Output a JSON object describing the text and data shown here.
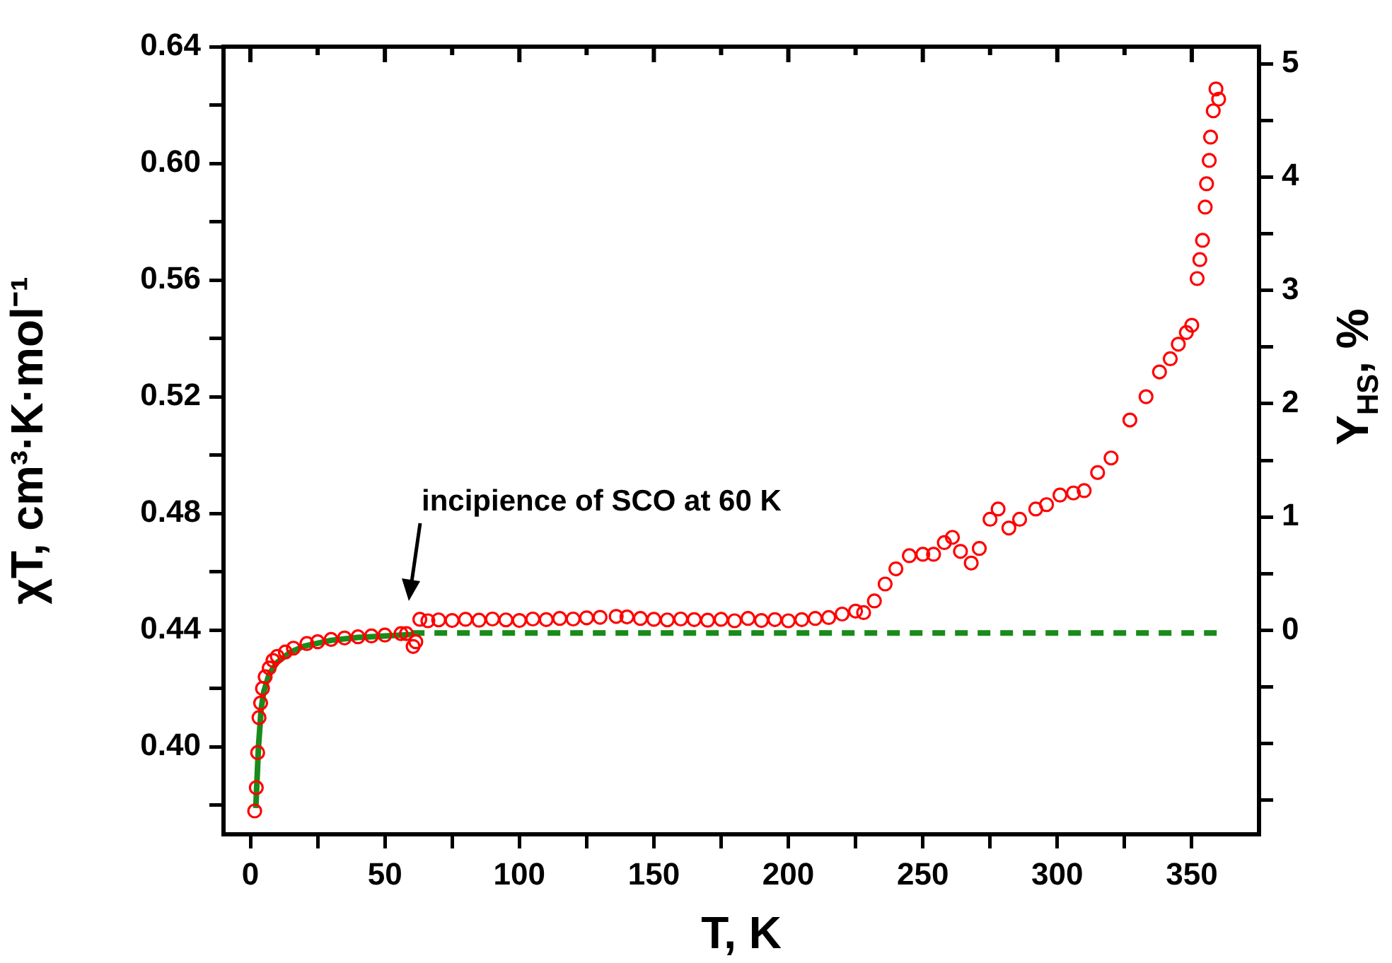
{
  "chart_data": {
    "type": "scatter",
    "xlabel": "T, K",
    "ylabel": "χT, cm³·K·mol⁻¹",
    "y2label": "Y$_{HS}$, %",
    "xlim": [
      -10,
      375
    ],
    "xticks": [
      0,
      {
        "value": 25,
        "label": null
      },
      50,
      {
        "value": 75,
        "label": null
      },
      100,
      {
        "value": 125,
        "label": null
      },
      150,
      {
        "value": 175,
        "label": null
      },
      200,
      {
        "value": 225,
        "label": null
      },
      250,
      {
        "value": 275,
        "label": null
      },
      300,
      {
        "value": 325,
        "label": null
      },
      350
    ],
    "ylim": [
      0.37,
      0.64
    ],
    "yticks": [
      {
        "value": 0.38,
        "label": null
      },
      "0.40",
      {
        "value": 0.42,
        "label": null
      },
      {
        "value": 0.44,
        "label": "0.44"
      },
      {
        "value": 0.46,
        "label": null
      },
      {
        "value": 0.48,
        "label": "0.48"
      },
      {
        "value": 0.5,
        "label": null
      },
      {
        "value": 0.52,
        "label": "0.52"
      },
      {
        "value": 0.54,
        "label": null
      },
      {
        "value": 0.56,
        "label": "0.56"
      },
      {
        "value": 0.58,
        "label": null
      },
      {
        "value": 0.6,
        "label": "0.60"
      },
      {
        "value": 0.62,
        "label": null
      },
      {
        "value": 0.64,
        "label": "0.64"
      }
    ],
    "y2lim": [
      -1.8,
      5.15
    ],
    "y2ticks": [
      {
        "value": -1.5,
        "label": null
      },
      {
        "value": -1,
        "label": null
      },
      {
        "value": -0.5,
        "label": null
      },
      0,
      {
        "value": 0.5,
        "label": null
      },
      1,
      {
        "value": 1.5,
        "label": null
      },
      2,
      {
        "value": 2.5,
        "label": null
      },
      3,
      {
        "value": 3.5,
        "label": null
      },
      4,
      {
        "value": 4.5,
        "label": null
      },
      5
    ],
    "grid": false,
    "legend": false,
    "marker": "circle",
    "annotations": [
      "incipience of SCO at 60 K"
    ],
    "series": [
      {
        "color": "#ff0000",
        "x": [
          1.6,
          2.2,
          2.7,
          3.2,
          3.8,
          4.5,
          5.5,
          7,
          8.4,
          10,
          13,
          16,
          21,
          25,
          30,
          35,
          40,
          45,
          50,
          56,
          58,
          60.5,
          61.5,
          63,
          66,
          70,
          75,
          80,
          85,
          90,
          95,
          100,
          105,
          110,
          115,
          120,
          125,
          130,
          136,
          140,
          145,
          150,
          155,
          160,
          165,
          170,
          175,
          180,
          185,
          190,
          195,
          200,
          205,
          210,
          215,
          220,
          225,
          228,
          232,
          236,
          240,
          245,
          250,
          254,
          258,
          261,
          264,
          268,
          271,
          275,
          278,
          282,
          286,
          292,
          296,
          301,
          306,
          310,
          315,
          320,
          327,
          333,
          338,
          342,
          345,
          348,
          350,
          352,
          353,
          354,
          355,
          355.5,
          356.5,
          357,
          358,
          359,
          360
        ],
        "values": [
          0.378,
          0.386,
          0.398,
          0.41,
          0.415,
          0.42,
          0.424,
          0.427,
          0.4296,
          0.431,
          0.4325,
          0.4338,
          0.4354,
          0.436,
          0.4368,
          0.4373,
          0.4377,
          0.438,
          0.4383,
          0.4388,
          0.4388,
          0.4344,
          0.436,
          0.4437,
          0.4432,
          0.4435,
          0.4433,
          0.4437,
          0.4434,
          0.4438,
          0.4435,
          0.4433,
          0.4438,
          0.4436,
          0.444,
          0.4438,
          0.4442,
          0.4444,
          0.4447,
          0.4445,
          0.444,
          0.4437,
          0.4435,
          0.4438,
          0.4436,
          0.4434,
          0.4437,
          0.4432,
          0.444,
          0.4433,
          0.4436,
          0.4432,
          0.4436,
          0.444,
          0.4443,
          0.4455,
          0.4465,
          0.446,
          0.45,
          0.4558,
          0.461,
          0.4655,
          0.466,
          0.466,
          0.47,
          0.4718,
          0.467,
          0.463,
          0.468,
          0.478,
          0.4815,
          0.475,
          0.478,
          0.4815,
          0.483,
          0.4863,
          0.487,
          0.4878,
          0.494,
          0.499,
          0.512,
          0.52,
          0.5285,
          0.533,
          0.538,
          0.542,
          0.5445,
          0.5605,
          0.567,
          0.5736,
          0.585,
          0.593,
          0.601,
          0.609,
          0.618,
          0.6255,
          0.622
        ]
      },
      {
        "type": "line",
        "color": "#1a8a1a",
        "marker": "none",
        "line_style": "solid",
        "x": [
          2,
          3,
          4,
          5,
          7,
          10,
          15,
          20,
          30,
          40,
          50,
          60
        ],
        "values": [
          0.379,
          0.4,
          0.413,
          0.419,
          0.425,
          0.429,
          0.4325,
          0.4345,
          0.4365,
          0.4375,
          0.438,
          0.4385
        ]
      },
      {
        "type": "line",
        "color": "#1a8a1a",
        "marker": "none",
        "line_style": "dashed",
        "x": [
          60,
          360
        ],
        "values": [
          0.439,
          0.439
        ]
      }
    ]
  }
}
